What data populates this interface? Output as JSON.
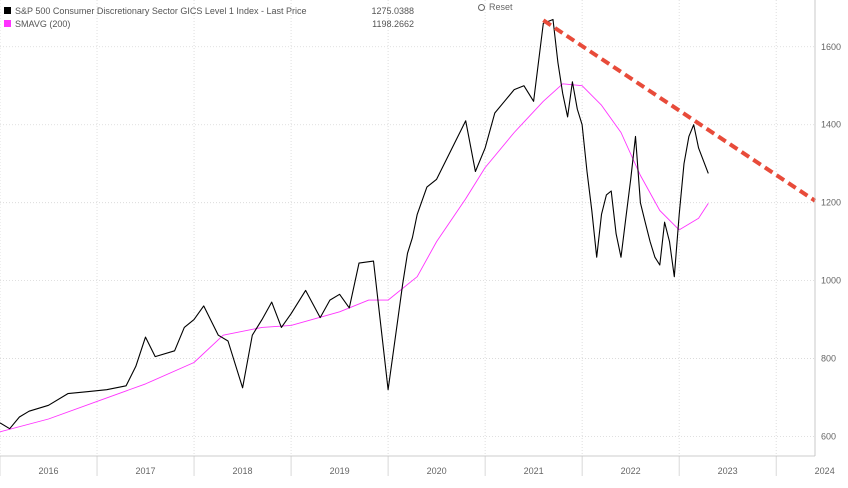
{
  "legend": [
    {
      "name": "S&P 500 Consumer Discretionary Sector GICS Level 1 Index - Last Price",
      "value": "1275.0388",
      "color": "#000000"
    },
    {
      "name": "SMAVG (200)",
      "value": "1198.2662",
      "color": "#ff33ff"
    }
  ],
  "reset_label": "Reset",
  "chart_data": {
    "type": "line",
    "xlabel": "",
    "ylabel": "",
    "xlim": [
      2016.0,
      2024.4
    ],
    "ylim": [
      550,
      1720
    ],
    "x_ticks": [
      "2016",
      "2017",
      "2018",
      "2019",
      "2020",
      "2021",
      "2022",
      "2023",
      "2024"
    ],
    "y_ticks": [
      600,
      800,
      1000,
      1200,
      1400,
      1600
    ],
    "grid": true,
    "series": [
      {
        "name": "S&P 500 Consumer Discretionary Sector GICS Level 1 Index - Last Price",
        "color": "#000000",
        "x": [
          2016.0,
          2016.1,
          2016.2,
          2016.3,
          2016.5,
          2016.7,
          2016.9,
          2017.1,
          2017.3,
          2017.4,
          2017.5,
          2017.6,
          2017.8,
          2017.9,
          2018.0,
          2018.1,
          2018.25,
          2018.35,
          2018.5,
          2018.6,
          2018.7,
          2018.8,
          2018.9,
          2019.0,
          2019.15,
          2019.3,
          2019.4,
          2019.5,
          2019.6,
          2019.7,
          2019.85,
          2020.0,
          2020.1,
          2020.15,
          2020.2,
          2020.25,
          2020.3,
          2020.4,
          2020.5,
          2020.6,
          2020.7,
          2020.8,
          2020.9,
          2021.0,
          2021.1,
          2021.2,
          2021.3,
          2021.4,
          2021.5,
          2021.6,
          2021.7,
          2021.75,
          2021.8,
          2021.85,
          2021.9,
          2021.95,
          2022.0,
          2022.05,
          2022.1,
          2022.15,
          2022.2,
          2022.25,
          2022.3,
          2022.35,
          2022.4,
          2022.45,
          2022.5,
          2022.55,
          2022.6,
          2022.65,
          2022.7,
          2022.75,
          2022.8,
          2022.85,
          2022.9,
          2022.95,
          2023.0,
          2023.05,
          2023.1,
          2023.15,
          2023.2,
          2023.3
        ],
        "y": [
          635,
          620,
          650,
          665,
          680,
          710,
          715,
          720,
          730,
          780,
          855,
          805,
          820,
          880,
          900,
          935,
          860,
          845,
          725,
          860,
          900,
          945,
          880,
          915,
          975,
          905,
          950,
          965,
          930,
          1045,
          1050,
          720,
          900,
          990,
          1070,
          1110,
          1170,
          1240,
          1260,
          1310,
          1360,
          1410,
          1280,
          1340,
          1430,
          1460,
          1490,
          1500,
          1460,
          1660,
          1670,
          1560,
          1480,
          1420,
          1510,
          1440,
          1400,
          1280,
          1180,
          1060,
          1170,
          1220,
          1230,
          1120,
          1060,
          1160,
          1260,
          1370,
          1200,
          1150,
          1100,
          1060,
          1040,
          1150,
          1100,
          1010,
          1170,
          1300,
          1370,
          1400,
          1340,
          1275
        ]
      },
      {
        "name": "SMAVG (200)",
        "color": "#ff33ff",
        "x": [
          2016.0,
          2016.5,
          2017.0,
          2017.5,
          2018.0,
          2018.3,
          2018.7,
          2019.0,
          2019.5,
          2019.8,
          2020.0,
          2020.3,
          2020.5,
          2020.8,
          2021.0,
          2021.3,
          2021.6,
          2021.8,
          2022.0,
          2022.2,
          2022.4,
          2022.6,
          2022.8,
          2023.0,
          2023.2,
          2023.3
        ],
        "y": [
          612,
          645,
          690,
          735,
          790,
          860,
          880,
          885,
          920,
          950,
          950,
          1010,
          1100,
          1210,
          1290,
          1380,
          1460,
          1505,
          1500,
          1450,
          1380,
          1270,
          1180,
          1130,
          1160,
          1198
        ]
      }
    ],
    "annotations": [
      {
        "type": "trendline",
        "style": "dashed",
        "color": "#e84b3a",
        "x": [
          2021.6,
          2024.4
        ],
        "y": [
          1668,
          1205
        ]
      }
    ]
  }
}
